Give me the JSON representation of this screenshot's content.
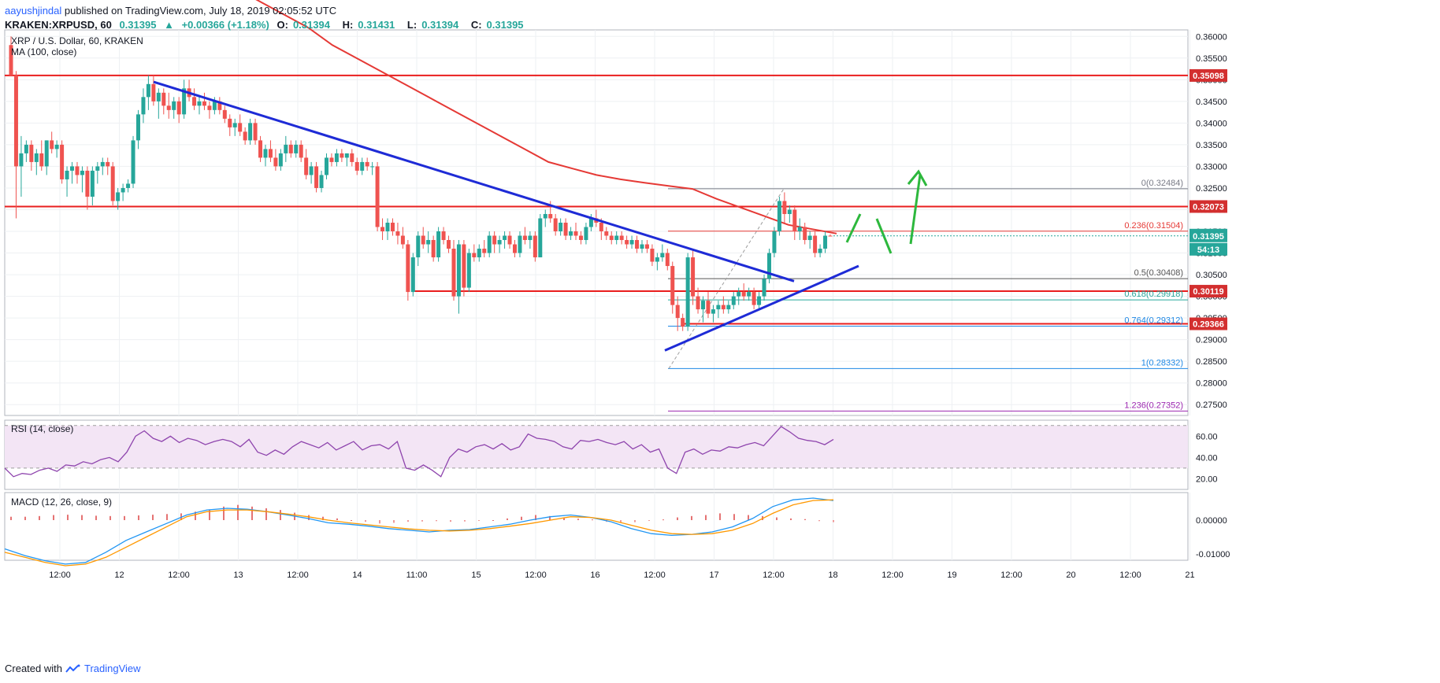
{
  "header": {
    "author": "aayushjindal",
    "published": "published on TradingView.com, July 18, 2019 02:05:52 UTC"
  },
  "symbol_line": {
    "symbol": "KRAKEN:XRPUSD, 60",
    "last": "0.31395",
    "change": "+0.00366 (+1.18%)",
    "o_label": "O:",
    "o": "0.31394",
    "h_label": "H:",
    "h": "0.31431",
    "l_label": "L:",
    "l": "0.31394",
    "c_label": "C:",
    "c": "0.31395"
  },
  "legend": {
    "title": "XRP / U.S. Dollar, 60, KRAKEN",
    "ma": "MA (100, close)"
  },
  "footer": {
    "created_with": "Created with",
    "brand": "TradingView"
  },
  "colors": {
    "bull": "#26a69a",
    "bear": "#ef5350",
    "ma": "#e53935",
    "trend": "#1e2bd6",
    "hline": "#e91e1e",
    "arrow": "#2db83d",
    "rsi": "#8e44ad",
    "macd": "#2196f3",
    "signal": "#ff9800"
  },
  "chart_data": {
    "type": "candlestick",
    "y_range": [
      0.2725,
      0.3615
    ],
    "x_ticks": [
      "12:00",
      "12",
      "12:00",
      "13",
      "12:00",
      "14",
      "11:00",
      "15",
      "12:00",
      "16",
      "12:00",
      "17",
      "12:00",
      "18",
      "12:00",
      "19",
      "12:00",
      "20",
      "12:00",
      "21"
    ],
    "y_ticks": [
      "0.36000",
      "0.35500",
      "0.35000",
      "0.34500",
      "0.34000",
      "0.33500",
      "0.33000",
      "0.32500",
      "0.32000",
      "0.31500",
      "0.31000",
      "0.30500",
      "0.30000",
      "0.29500",
      "0.29000",
      "0.28500",
      "0.28000",
      "0.27500"
    ],
    "candles": [
      [
        0.358,
        0.36,
        0.351,
        0.351
      ],
      [
        0.351,
        0.352,
        0.318,
        0.33
      ],
      [
        0.33,
        0.337,
        0.323,
        0.333
      ],
      [
        0.333,
        0.336,
        0.331,
        0.335
      ],
      [
        0.335,
        0.336,
        0.329,
        0.331
      ],
      [
        0.331,
        0.334,
        0.328,
        0.333
      ],
      [
        0.333,
        0.336,
        0.329,
        0.33
      ],
      [
        0.33,
        0.336,
        0.328,
        0.336
      ],
      [
        0.336,
        0.338,
        0.333,
        0.334
      ],
      [
        0.334,
        0.336,
        0.332,
        0.335
      ],
      [
        0.335,
        0.336,
        0.326,
        0.327
      ],
      [
        0.327,
        0.33,
        0.323,
        0.329
      ],
      [
        0.329,
        0.331,
        0.326,
        0.33
      ],
      [
        0.33,
        0.331,
        0.326,
        0.328
      ],
      [
        0.328,
        0.33,
        0.324,
        0.329
      ],
      [
        0.329,
        0.33,
        0.32,
        0.323
      ],
      [
        0.323,
        0.33,
        0.321,
        0.329
      ],
      [
        0.329,
        0.331,
        0.326,
        0.33
      ],
      [
        0.33,
        0.332,
        0.328,
        0.331
      ],
      [
        0.331,
        0.332,
        0.328,
        0.33
      ],
      [
        0.33,
        0.331,
        0.321,
        0.322
      ],
      [
        0.322,
        0.325,
        0.32,
        0.324
      ],
      [
        0.324,
        0.326,
        0.322,
        0.325
      ],
      [
        0.325,
        0.327,
        0.324,
        0.326
      ],
      [
        0.326,
        0.337,
        0.325,
        0.336
      ],
      [
        0.336,
        0.343,
        0.334,
        0.342
      ],
      [
        0.342,
        0.348,
        0.34,
        0.346
      ],
      [
        0.346,
        0.351,
        0.343,
        0.349
      ],
      [
        0.349,
        0.351,
        0.344,
        0.345
      ],
      [
        0.345,
        0.348,
        0.341,
        0.347
      ],
      [
        0.347,
        0.348,
        0.342,
        0.344
      ],
      [
        0.344,
        0.347,
        0.341,
        0.343
      ],
      [
        0.343,
        0.346,
        0.341,
        0.345
      ],
      [
        0.345,
        0.346,
        0.34,
        0.342
      ],
      [
        0.342,
        0.35,
        0.341,
        0.348
      ],
      [
        0.348,
        0.35,
        0.345,
        0.346
      ],
      [
        0.346,
        0.348,
        0.343,
        0.344
      ],
      [
        0.344,
        0.346,
        0.342,
        0.345
      ],
      [
        0.345,
        0.347,
        0.343,
        0.344
      ],
      [
        0.344,
        0.345,
        0.341,
        0.343
      ],
      [
        0.343,
        0.346,
        0.342,
        0.345
      ],
      [
        0.345,
        0.346,
        0.342,
        0.343
      ],
      [
        0.343,
        0.344,
        0.34,
        0.341
      ],
      [
        0.341,
        0.342,
        0.337,
        0.339
      ],
      [
        0.339,
        0.341,
        0.337,
        0.34
      ],
      [
        0.34,
        0.342,
        0.337,
        0.338
      ],
      [
        0.338,
        0.339,
        0.335,
        0.336
      ],
      [
        0.336,
        0.341,
        0.335,
        0.34
      ],
      [
        0.34,
        0.341,
        0.335,
        0.336
      ],
      [
        0.336,
        0.337,
        0.331,
        0.332
      ],
      [
        0.332,
        0.335,
        0.33,
        0.334
      ],
      [
        0.334,
        0.336,
        0.331,
        0.332
      ],
      [
        0.332,
        0.334,
        0.329,
        0.33
      ],
      [
        0.33,
        0.334,
        0.329,
        0.333
      ],
      [
        0.333,
        0.337,
        0.331,
        0.335
      ],
      [
        0.335,
        0.336,
        0.332,
        0.333
      ],
      [
        0.333,
        0.336,
        0.332,
        0.335
      ],
      [
        0.335,
        0.336,
        0.331,
        0.332
      ],
      [
        0.332,
        0.334,
        0.327,
        0.328
      ],
      [
        0.328,
        0.331,
        0.326,
        0.33
      ],
      [
        0.33,
        0.331,
        0.324,
        0.325
      ],
      [
        0.325,
        0.329,
        0.324,
        0.328
      ],
      [
        0.328,
        0.333,
        0.327,
        0.332
      ],
      [
        0.332,
        0.333,
        0.33,
        0.331
      ],
      [
        0.331,
        0.334,
        0.33,
        0.333
      ],
      [
        0.333,
        0.334,
        0.331,
        0.332
      ],
      [
        0.332,
        0.333,
        0.33,
        0.333
      ],
      [
        0.333,
        0.334,
        0.33,
        0.331
      ],
      [
        0.331,
        0.332,
        0.328,
        0.329
      ],
      [
        0.329,
        0.332,
        0.328,
        0.331
      ],
      [
        0.331,
        0.332,
        0.329,
        0.33
      ],
      [
        0.33,
        0.331,
        0.328,
        0.33
      ],
      [
        0.33,
        0.331,
        0.315,
        0.316
      ],
      [
        0.316,
        0.318,
        0.313,
        0.315
      ],
      [
        0.315,
        0.318,
        0.313,
        0.317
      ],
      [
        0.317,
        0.318,
        0.314,
        0.315
      ],
      [
        0.315,
        0.317,
        0.312,
        0.314
      ],
      [
        0.314,
        0.316,
        0.311,
        0.312
      ],
      [
        0.312,
        0.313,
        0.299,
        0.301
      ],
      [
        0.301,
        0.31,
        0.3,
        0.309
      ],
      [
        0.309,
        0.315,
        0.307,
        0.314
      ],
      [
        0.314,
        0.316,
        0.311,
        0.312
      ],
      [
        0.312,
        0.315,
        0.31,
        0.313
      ],
      [
        0.313,
        0.314,
        0.308,
        0.309
      ],
      [
        0.309,
        0.316,
        0.308,
        0.315
      ],
      [
        0.315,
        0.316,
        0.312,
        0.313
      ],
      [
        0.313,
        0.314,
        0.31,
        0.311
      ],
      [
        0.311,
        0.313,
        0.299,
        0.3
      ],
      [
        0.3,
        0.313,
        0.296,
        0.312
      ],
      [
        0.312,
        0.313,
        0.3,
        0.302
      ],
      [
        0.302,
        0.311,
        0.301,
        0.31
      ],
      [
        0.31,
        0.312,
        0.308,
        0.309
      ],
      [
        0.309,
        0.312,
        0.308,
        0.311
      ],
      [
        0.311,
        0.313,
        0.309,
        0.31
      ],
      [
        0.31,
        0.315,
        0.309,
        0.314
      ],
      [
        0.314,
        0.315,
        0.31,
        0.312
      ],
      [
        0.312,
        0.314,
        0.31,
        0.313
      ],
      [
        0.313,
        0.315,
        0.311,
        0.314
      ],
      [
        0.314,
        0.315,
        0.311,
        0.312
      ],
      [
        0.312,
        0.313,
        0.309,
        0.31
      ],
      [
        0.31,
        0.315,
        0.309,
        0.314
      ],
      [
        0.314,
        0.316,
        0.312,
        0.313
      ],
      [
        0.313,
        0.315,
        0.311,
        0.314
      ],
      [
        0.314,
        0.315,
        0.308,
        0.309
      ],
      [
        0.309,
        0.319,
        0.309,
        0.318
      ],
      [
        0.318,
        0.32,
        0.316,
        0.319
      ],
      [
        0.319,
        0.322,
        0.317,
        0.318
      ],
      [
        0.318,
        0.319,
        0.314,
        0.315
      ],
      [
        0.315,
        0.318,
        0.314,
        0.317
      ],
      [
        0.317,
        0.318,
        0.313,
        0.314
      ],
      [
        0.314,
        0.316,
        0.313,
        0.315
      ],
      [
        0.315,
        0.317,
        0.313,
        0.314
      ],
      [
        0.314,
        0.315,
        0.312,
        0.313
      ],
      [
        0.313,
        0.317,
        0.312,
        0.316
      ],
      [
        0.316,
        0.319,
        0.315,
        0.318
      ],
      [
        0.318,
        0.32,
        0.316,
        0.317
      ],
      [
        0.317,
        0.318,
        0.313,
        0.315
      ],
      [
        0.315,
        0.316,
        0.313,
        0.314
      ],
      [
        0.314,
        0.315,
        0.312,
        0.313
      ],
      [
        0.313,
        0.315,
        0.312,
        0.314
      ],
      [
        0.314,
        0.315,
        0.312,
        0.313
      ],
      [
        0.313,
        0.314,
        0.311,
        0.312
      ],
      [
        0.312,
        0.314,
        0.311,
        0.313
      ],
      [
        0.313,
        0.314,
        0.31,
        0.311
      ],
      [
        0.311,
        0.313,
        0.31,
        0.312
      ],
      [
        0.312,
        0.313,
        0.31,
        0.311
      ],
      [
        0.311,
        0.312,
        0.307,
        0.308
      ],
      [
        0.308,
        0.31,
        0.306,
        0.309
      ],
      [
        0.309,
        0.312,
        0.308,
        0.31
      ],
      [
        0.31,
        0.311,
        0.306,
        0.307
      ],
      [
        0.307,
        0.308,
        0.296,
        0.298
      ],
      [
        0.298,
        0.3,
        0.292,
        0.295
      ],
      [
        0.295,
        0.296,
        0.292,
        0.293
      ],
      [
        0.293,
        0.31,
        0.292,
        0.309
      ],
      [
        0.309,
        0.311,
        0.298,
        0.3
      ],
      [
        0.3,
        0.302,
        0.296,
        0.297
      ],
      [
        0.297,
        0.3,
        0.294,
        0.299
      ],
      [
        0.299,
        0.301,
        0.295,
        0.296
      ],
      [
        0.296,
        0.298,
        0.294,
        0.297
      ],
      [
        0.297,
        0.299,
        0.295,
        0.298
      ],
      [
        0.298,
        0.3,
        0.296,
        0.297
      ],
      [
        0.297,
        0.299,
        0.296,
        0.298
      ],
      [
        0.298,
        0.301,
        0.297,
        0.3
      ],
      [
        0.3,
        0.302,
        0.298,
        0.301
      ],
      [
        0.301,
        0.303,
        0.299,
        0.3
      ],
      [
        0.3,
        0.302,
        0.299,
        0.301
      ],
      [
        0.301,
        0.302,
        0.297,
        0.298
      ],
      [
        0.298,
        0.301,
        0.297,
        0.3
      ],
      [
        0.3,
        0.305,
        0.299,
        0.304
      ],
      [
        0.304,
        0.311,
        0.303,
        0.31
      ],
      [
        0.31,
        0.316,
        0.309,
        0.315
      ],
      [
        0.315,
        0.323,
        0.314,
        0.322
      ],
      [
        0.322,
        0.324,
        0.317,
        0.319
      ],
      [
        0.319,
        0.321,
        0.317,
        0.32
      ],
      [
        0.32,
        0.321,
        0.313,
        0.315
      ],
      [
        0.315,
        0.318,
        0.313,
        0.316
      ],
      [
        0.316,
        0.317,
        0.312,
        0.313
      ],
      [
        0.313,
        0.315,
        0.311,
        0.314
      ],
      [
        0.314,
        0.315,
        0.309,
        0.31
      ],
      [
        0.31,
        0.312,
        0.309,
        0.311
      ],
      [
        0.311,
        0.315,
        0.31,
        0.314
      ],
      [
        0.314,
        0.3143,
        0.3139,
        0.31395
      ]
    ],
    "ma100": [
      0.371,
      0.368,
      0.365,
      0.362,
      0.358,
      0.355,
      0.352,
      0.349,
      0.346,
      0.343,
      0.34,
      0.337,
      0.334,
      0.331,
      0.3295,
      0.328,
      0.327,
      0.3262,
      0.3255,
      0.3248,
      0.3225,
      0.3205,
      0.3185,
      0.3165,
      0.3155,
      0.3145
    ],
    "horizontal_lines": [
      {
        "value": 0.35098,
        "label": "0.35098"
      },
      {
        "value": 0.32073,
        "label": "0.32073"
      },
      {
        "value": 0.30119,
        "label": "0.30119"
      },
      {
        "value": 0.29366,
        "label": "0.29366"
      }
    ],
    "fib_levels": [
      {
        "ratio": "0",
        "value": 0.32484,
        "label": "0(0.32484)"
      },
      {
        "ratio": "0.236",
        "value": 0.31504,
        "label": "0.236(0.31504)"
      },
      {
        "ratio": "0.5",
        "value": 0.30408,
        "label": "0.5(0.30408)"
      },
      {
        "ratio": "0.618",
        "value": 0.29918,
        "label": "0.618(0.29918)"
      },
      {
        "ratio": "0.764",
        "value": 0.29312,
        "label": "0.764(0.29312)"
      },
      {
        "ratio": "1",
        "value": 0.28332,
        "label": "1(0.28332)"
      },
      {
        "ratio": "1.236",
        "value": 0.27352,
        "label": "1.236(0.27352)"
      }
    ],
    "price_badge": "0.31395",
    "countdown": "54:13",
    "rsi": {
      "label": "RSI (14, close)",
      "y_ticks": [
        "60.00",
        "40.00",
        "20.00"
      ],
      "values": [
        30,
        22,
        25,
        24,
        28,
        30,
        27,
        33,
        32,
        36,
        34,
        38,
        40,
        36,
        45,
        60,
        65,
        58,
        55,
        60,
        54,
        58,
        56,
        52,
        55,
        57,
        55,
        50,
        57,
        45,
        42,
        47,
        43,
        50,
        55,
        52,
        49,
        54,
        47,
        51,
        55,
        47,
        51,
        52,
        48,
        55,
        30,
        28,
        33,
        28,
        22,
        40,
        48,
        45,
        50,
        52,
        48,
        53,
        47,
        50,
        62,
        58,
        57,
        55,
        50,
        48,
        56,
        55,
        57,
        54,
        52,
        55,
        48,
        52,
        45,
        48,
        30,
        25,
        45,
        48,
        43,
        47,
        46,
        50,
        49,
        52,
        54,
        51,
        60,
        69,
        64,
        58,
        56,
        55,
        52,
        57
      ]
    },
    "macd": {
      "label": "MACD (12, 26, close, 9)",
      "y_ticks": [
        "0.00000",
        "-0.01000"
      ],
      "hist": [
        0.001,
        0.001,
        0.0012,
        0.0015,
        0.0016,
        0.0015,
        0.0013,
        0.0012,
        0.0012,
        0.0014,
        0.0016,
        0.0018,
        0.002,
        0.0025,
        0.003,
        0.004,
        0.0045,
        0.004,
        0.0035,
        0.003,
        0.0022,
        0.0015,
        0.001,
        0.0005,
        0,
        -0.0005,
        -0.001,
        -0.0008,
        -0.0005,
        -0.0004,
        -0.0003,
        -0.0005,
        -0.0004,
        -0.0002,
        0,
        0.0005,
        0.001,
        0.0015,
        0.0012,
        0.0008,
        0.0004,
        0.0002,
        -0.0005,
        -0.0008,
        -0.0006,
        -0.0002,
        0.0002,
        0.0008,
        0.0012,
        0.0015,
        0.002,
        0.0018,
        0.0015,
        0.0012,
        0.0008,
        0.0005,
        0.0003,
        -0.0003,
        -0.0006
      ],
      "macd_line": [
        -0.0085,
        -0.0105,
        -0.012,
        -0.013,
        -0.0125,
        -0.0095,
        -0.006,
        -0.0035,
        -0.001,
        0.0015,
        0.003,
        0.0035,
        0.0032,
        0.0025,
        0.0015,
        0.0005,
        -0.0008,
        -0.0012,
        -0.0018,
        -0.0025,
        -0.003,
        -0.0035,
        -0.003,
        -0.0028,
        -0.002,
        -0.0012,
        0,
        0.001,
        0.0015,
        0.0008,
        -0.0005,
        -0.0025,
        -0.004,
        -0.0045,
        -0.0042,
        -0.0035,
        -0.002,
        0.0005,
        0.004,
        0.006,
        0.0065,
        0.0058
      ],
      "signal_line": [
        -0.0095,
        -0.011,
        -0.0125,
        -0.0135,
        -0.013,
        -0.011,
        -0.008,
        -0.005,
        -0.002,
        0.001,
        0.0025,
        0.003,
        0.003,
        0.0025,
        0.0018,
        0.001,
        0,
        -0.0008,
        -0.0014,
        -0.002,
        -0.0026,
        -0.003,
        -0.0032,
        -0.003,
        -0.0025,
        -0.0018,
        -0.001,
        0,
        0.001,
        0.0008,
        0,
        -0.0015,
        -0.003,
        -0.004,
        -0.0042,
        -0.004,
        -0.003,
        -0.001,
        0.002,
        0.0045,
        0.0058,
        0.006
      ]
    }
  }
}
